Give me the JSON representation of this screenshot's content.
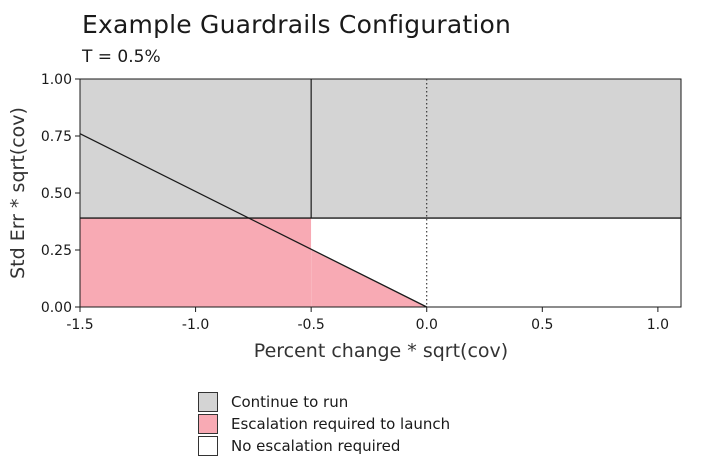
{
  "chart_data": {
    "type": "area",
    "title": "Example Guardrails Configuration",
    "subtitle": "T = 0.5%",
    "xlabel": "Percent change * sqrt(cov)",
    "ylabel": "Std Err * sqrt(cov)",
    "xlim": [
      -1.5,
      1.1
    ],
    "ylim": [
      0,
      1
    ],
    "xticks": [
      "-1.5",
      "-1.0",
      "-0.5",
      "0.0",
      "0.5",
      "1.0"
    ],
    "yticks": [
      "0.00",
      "0.25",
      "0.50",
      "0.75",
      "1.00"
    ],
    "grid": false,
    "regions": [
      {
        "label": "Continue to run",
        "color": "#d4d4d4",
        "x": [
          -1.5,
          1.1
        ],
        "y": [
          0.39,
          1.0
        ]
      },
      {
        "label": "Escalation required to launch",
        "color": "#f8aab4",
        "x": [
          -1.5,
          -0.5
        ],
        "y": [
          0.0,
          0.39
        ]
      },
      {
        "label": "No escalation required",
        "color": "#ffffff",
        "x": [
          -0.5,
          1.1
        ],
        "y": [
          0.0,
          0.39
        ]
      }
    ],
    "escalation_triangle": {
      "color": "#f8aab4",
      "points": [
        [
          -0.5,
          0.0
        ],
        [
          0.0,
          0.0
        ],
        [
          -0.5,
          0.25
        ]
      ]
    },
    "boundary_line": {
      "x": [
        -1.5,
        0.0
      ],
      "y": [
        0.76,
        0.0
      ],
      "color": "#1a1a1a"
    },
    "vertical_lines": [
      {
        "x": -0.5,
        "style": "solid",
        "y": [
          0.39,
          1.0
        ]
      },
      {
        "x": 0.0,
        "style": "dotted",
        "y": [
          0.0,
          1.0
        ]
      }
    ],
    "horizontal_line": {
      "y": 0.39,
      "style": "solid"
    },
    "legend": {
      "position": "bottom",
      "entries": [
        {
          "label": "Continue to run",
          "color": "#d4d4d4"
        },
        {
          "label": "Escalation required to launch",
          "color": "#f8aab4"
        },
        {
          "label": "No escalation required",
          "color": "#ffffff"
        }
      ]
    }
  }
}
